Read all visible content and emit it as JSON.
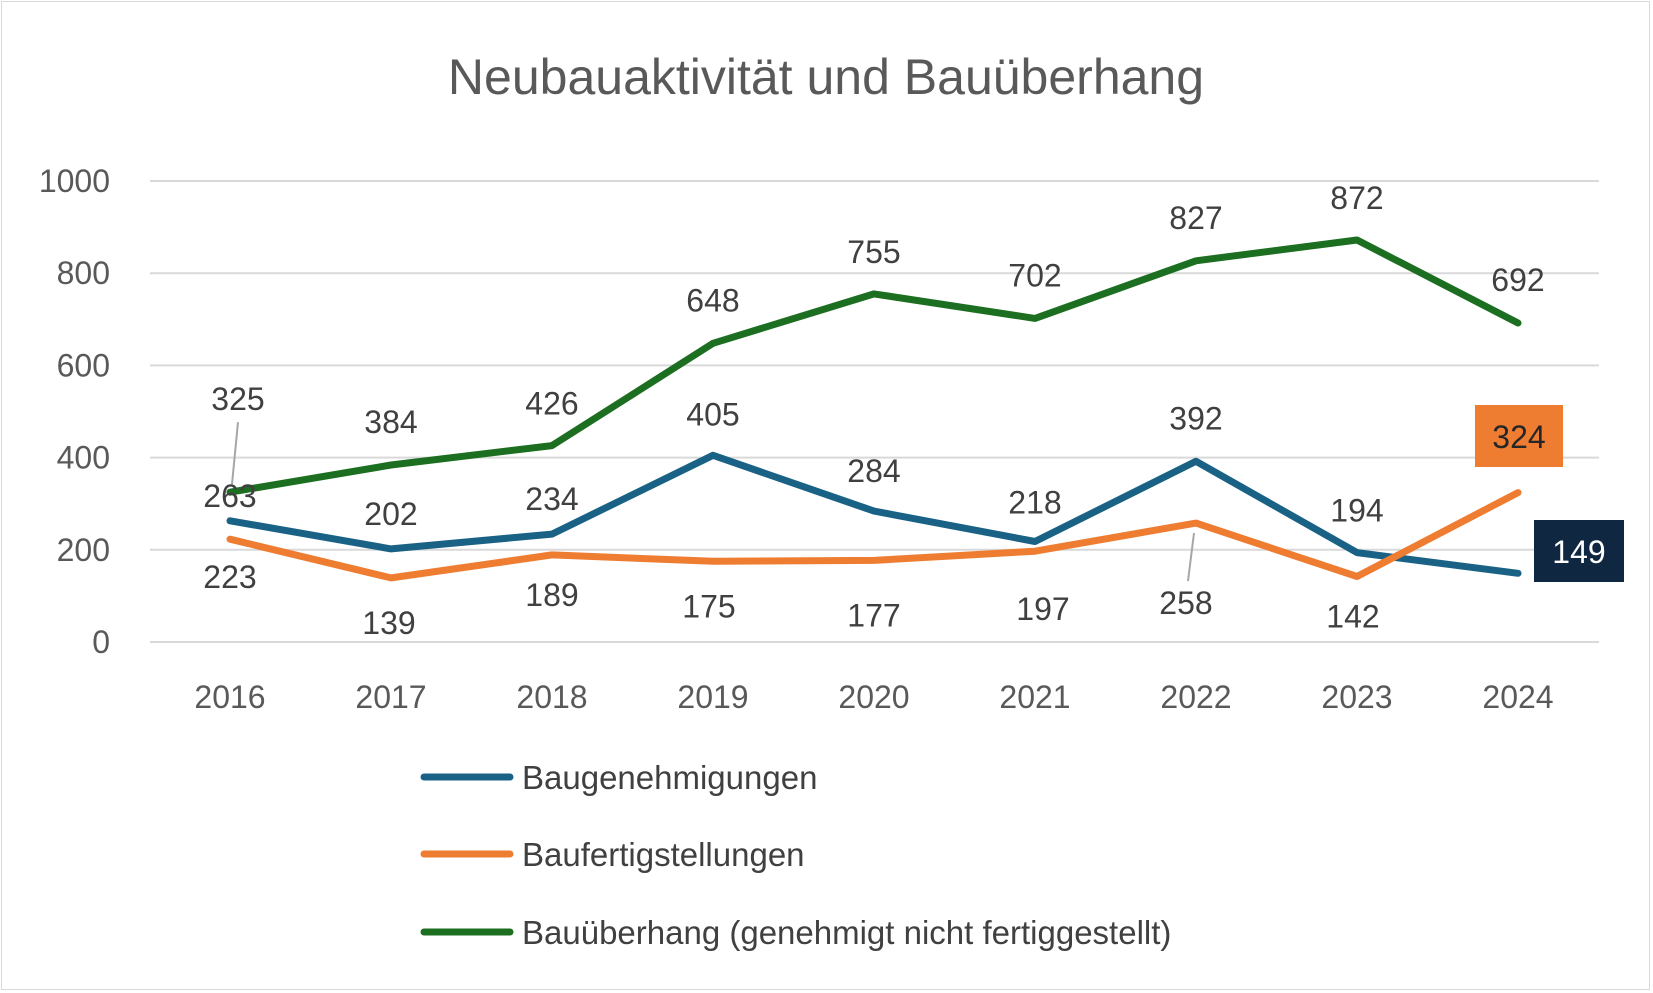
{
  "chart_data": {
    "type": "line",
    "title": "Neubauaktivität und Bauüberhang",
    "xlabel": "",
    "ylabel": "",
    "ylim": [
      0,
      1000
    ],
    "yticks": [
      0,
      200,
      400,
      600,
      800,
      1000
    ],
    "grid": true,
    "legend_position": "bottom",
    "categories": [
      "2016",
      "2017",
      "2018",
      "2019",
      "2020",
      "2021",
      "2022",
      "2023",
      "2024"
    ],
    "series": [
      {
        "name": "Baugenehmigungen",
        "color": "#1a6285",
        "values": [
          263,
          202,
          234,
          405,
          284,
          218,
          392,
          194,
          149
        ]
      },
      {
        "name": "Baufertigstellungen",
        "color": "#ee7d31",
        "values": [
          223,
          139,
          189,
          175,
          177,
          197,
          258,
          142,
          324
        ]
      },
      {
        "name": "Bauüberhang (genehmigt nicht fertiggestellt)",
        "color": "#1c6e20",
        "values": [
          325,
          384,
          426,
          648,
          755,
          702,
          827,
          872,
          692
        ]
      }
    ],
    "highlighted_labels": [
      {
        "series": "Baufertigstellungen",
        "category": "2024",
        "background": "#ee7d31",
        "text_color": "#262626"
      },
      {
        "series": "Baugenehmigungen",
        "category": "2024",
        "background": "#0f2740",
        "text_color": "#ffffff"
      }
    ]
  }
}
